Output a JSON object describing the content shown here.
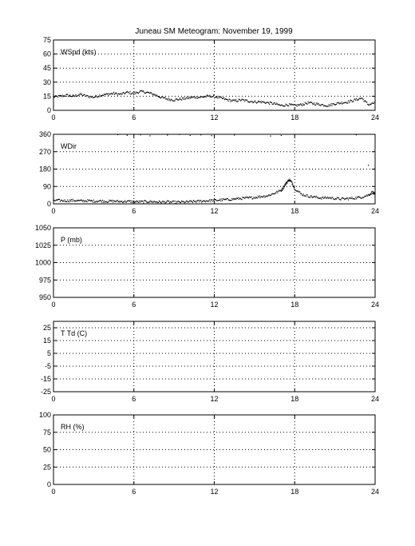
{
  "title": "Juneau SM Meteogram:  November 19, 1999",
  "chart_data": [
    {
      "type": "scatter",
      "panel_label": "WSpd (kts)",
      "x_ticks": [
        0,
        6,
        12,
        18,
        24
      ],
      "xlim": [
        0,
        24
      ],
      "y_ticks": [
        0,
        15,
        30,
        45,
        60,
        75
      ],
      "ylim": [
        0,
        75
      ],
      "grid": true,
      "series": [
        {
          "x": [
            0,
            0.5,
            1,
            1.5,
            2,
            2.5,
            3,
            3.5,
            4,
            4.5,
            5,
            5.5,
            6,
            6.5,
            7,
            7.5,
            8,
            8.5,
            9,
            9.5,
            10,
            10.5,
            11,
            11.5,
            12,
            12.5,
            13,
            13.5,
            14,
            14.5,
            15,
            15.5,
            16,
            16.5,
            17,
            17.5,
            18,
            18.5,
            19,
            19.5,
            20,
            20.5,
            21,
            21.5,
            22,
            22.5,
            23,
            23.5,
            24
          ],
          "values": [
            14,
            15,
            16,
            15,
            17,
            15,
            14,
            16,
            17,
            18,
            17,
            19,
            18,
            20,
            19,
            17,
            14,
            12,
            11,
            12,
            13,
            14,
            14,
            15,
            15,
            13,
            11,
            10,
            11,
            10,
            9,
            9,
            8,
            7,
            5,
            6,
            5,
            6,
            8,
            7,
            6,
            5,
            7,
            8,
            9,
            11,
            13,
            6,
            8
          ]
        }
      ]
    },
    {
      "type": "scatter",
      "panel_label": "WDir",
      "x_ticks": [
        0,
        6,
        12,
        18,
        24
      ],
      "xlim": [
        0,
        24
      ],
      "y_ticks": [
        0,
        90,
        180,
        270,
        360
      ],
      "ylim": [
        0,
        360
      ],
      "grid": true,
      "series": [
        {
          "x": [
            0,
            0.5,
            1,
            1.5,
            2,
            2.5,
            3,
            3.5,
            4,
            4.5,
            5,
            5.5,
            6,
            6.5,
            7,
            7.5,
            8,
            8.5,
            9,
            9.5,
            10,
            10.5,
            11,
            11.5,
            12,
            12.5,
            13,
            13.5,
            14,
            14.5,
            15,
            15.5,
            16,
            16.5,
            17,
            17.2,
            17.4,
            17.6,
            17.8,
            18,
            18.5,
            19,
            19.5,
            20,
            20.5,
            21,
            21.5,
            22,
            22.5,
            23,
            23.5,
            23.8,
            24
          ],
          "values": [
            18,
            17,
            16,
            18,
            15,
            16,
            14,
            15,
            13,
            14,
            12,
            13,
            11,
            10,
            12,
            11,
            9,
            10,
            8,
            9,
            10,
            12,
            14,
            16,
            18,
            20,
            22,
            25,
            28,
            30,
            33,
            38,
            42,
            55,
            70,
            90,
            110,
            125,
            110,
            80,
            50,
            40,
            35,
            30,
            32,
            28,
            25,
            27,
            30,
            35,
            45,
            60,
            50
          ]
        },
        {
          "x": [
            4.8,
            5.5,
            6.5,
            7.2,
            8.5,
            9.4,
            10.2,
            11.0,
            11.8,
            13.5,
            16.2,
            17.0,
            22.6,
            23.5
          ],
          "values": [
            358,
            355,
            357,
            352,
            356,
            359,
            354,
            357,
            353,
            356,
            351,
            354,
            357,
            200
          ]
        }
      ]
    },
    {
      "type": "scatter",
      "panel_label": "P (mb)",
      "x_ticks": [
        0,
        6,
        12,
        18,
        24
      ],
      "xlim": [
        0,
        24
      ],
      "y_ticks": [
        950,
        975,
        1000,
        1025,
        1050
      ],
      "ylim": [
        950,
        1050
      ],
      "grid": true,
      "series": []
    },
    {
      "type": "scatter",
      "panel_label": "T Td (C)",
      "x_ticks": [
        0,
        6,
        12,
        18,
        24
      ],
      "xlim": [
        0,
        24
      ],
      "y_ticks": [
        -25,
        -15,
        -5,
        5,
        15,
        25
      ],
      "ylim": [
        -25,
        30
      ],
      "grid": true,
      "series": []
    },
    {
      "type": "scatter",
      "panel_label": "RH (%)",
      "x_ticks": [
        0,
        6,
        12,
        18,
        24
      ],
      "xlim": [
        0,
        24
      ],
      "y_ticks": [
        0,
        25,
        50,
        75,
        100
      ],
      "ylim": [
        0,
        100
      ],
      "grid": true,
      "series": []
    }
  ]
}
